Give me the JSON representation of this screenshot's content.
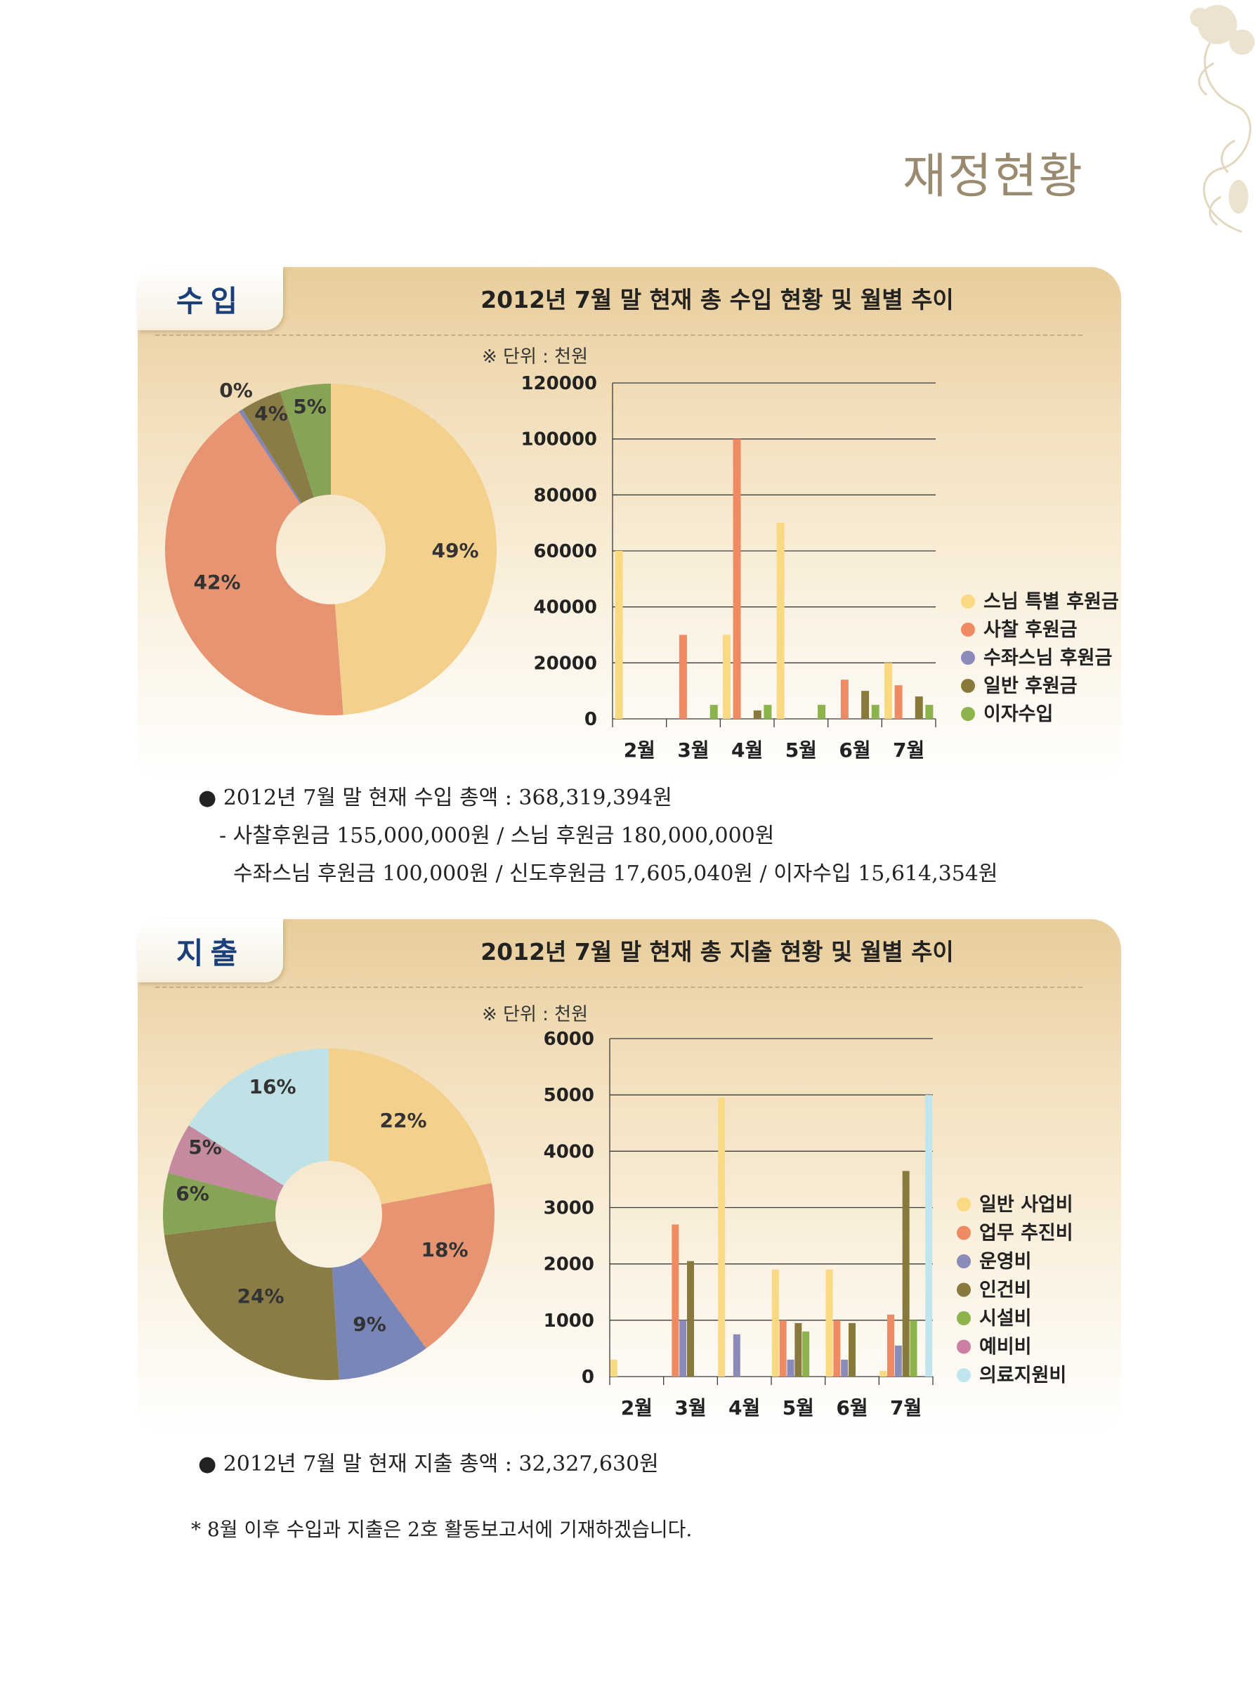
{
  "page": {
    "title": "재정현황"
  },
  "income": {
    "tab_label": "수입",
    "heading": "2012년 7월 말 현재 총 수입 현황 및 월별 추이",
    "notes": [
      "● 2012년 7월 말 현재 수입 총액 : 368,319,394원",
      "- 사찰후원금 155,000,000원  / 스님 후원금 180,000,000원",
      "수좌스님 후원금 100,000원 / 신도후원금 17,605,040원 / 이자수입 15,614,354원"
    ]
  },
  "expense": {
    "tab_label": "지출",
    "heading": "2012년 7월 말 현재 총 지출 현황 및 월별 추이",
    "notes": [
      "● 2012년 7월 말 현재 지출 총액 : 32,327,630원"
    ]
  },
  "footnote": "* 8월 이후 수입과 지출은 2호 활동보고서에 기재하겠습니다.",
  "chart_data": [
    {
      "type": "pie",
      "id": "income-pie",
      "slices": [
        {
          "label": "49%",
          "value": 49,
          "color": "#f4d08d"
        },
        {
          "label": "42%",
          "value": 42,
          "color": "#e69472"
        },
        {
          "label": "0%",
          "value": 0.4,
          "color": "#8486b6"
        },
        {
          "label": "4%",
          "value": 4,
          "color": "#8a7c47"
        },
        {
          "label": "5%",
          "value": 5,
          "color": "#86a356"
        }
      ]
    },
    {
      "type": "bar",
      "id": "income-bar",
      "unit_note": "※ 단위 : 천원",
      "categories": [
        "2월",
        "3월",
        "4월",
        "5월",
        "6월",
        "7월"
      ],
      "ylim": [
        0,
        120000
      ],
      "yticks": [
        "0",
        "20000",
        "40000",
        "60000",
        "80000",
        "100000",
        "120000"
      ],
      "grid": true,
      "legend_position": "right",
      "series": [
        {
          "name": "스님 특별 후원금",
          "color": "#fad983",
          "values": [
            60000,
            0,
            30000,
            70000,
            0,
            20000
          ]
        },
        {
          "name": "사찰 후원금",
          "color": "#ef8b62",
          "values": [
            0,
            30000,
            100000,
            0,
            14000,
            12000
          ]
        },
        {
          "name": "수좌스님 후원금",
          "color": "#8a8bb8",
          "values": [
            0,
            0,
            0,
            0,
            0,
            0
          ]
        },
        {
          "name": "일반 후원금",
          "color": "#877a3c",
          "values": [
            0,
            0,
            3000,
            0,
            10000,
            8000
          ]
        },
        {
          "name": "이자수입",
          "color": "#8cb34c",
          "values": [
            0,
            5000,
            5000,
            5000,
            5000,
            5000
          ]
        }
      ]
    },
    {
      "type": "pie",
      "id": "expense-pie",
      "slices": [
        {
          "label": "22%",
          "value": 22,
          "color": "#f4d08d"
        },
        {
          "label": "18%",
          "value": 18,
          "color": "#e69472"
        },
        {
          "label": "9%",
          "value": 9,
          "color": "#7b86b8"
        },
        {
          "label": "24%",
          "value": 24,
          "color": "#8a7c47"
        },
        {
          "label": "6%",
          "value": 6,
          "color": "#86a356"
        },
        {
          "label": "5%",
          "value": 5,
          "color": "#c48aa0"
        },
        {
          "label": "16%",
          "value": 16,
          "color": "#bfe2e6"
        }
      ]
    },
    {
      "type": "bar",
      "id": "expense-bar",
      "unit_note": "※ 단위 : 천원",
      "categories": [
        "2월",
        "3월",
        "4월",
        "5월",
        "6월",
        "7월"
      ],
      "ylim": [
        0,
        6000
      ],
      "yticks": [
        "0",
        "1000",
        "2000",
        "3000",
        "4000",
        "5000",
        "6000"
      ],
      "grid": true,
      "legend_position": "right",
      "series": [
        {
          "name": "일반 사업비",
          "color": "#fad983",
          "values": [
            300,
            0,
            4950,
            1900,
            1900,
            100
          ]
        },
        {
          "name": "업무 추진비",
          "color": "#ef8b62",
          "values": [
            0,
            2700,
            0,
            1000,
            1000,
            1100
          ]
        },
        {
          "name": "운영비",
          "color": "#8a8bb8",
          "values": [
            0,
            1000,
            750,
            300,
            300,
            550
          ]
        },
        {
          "name": "인건비",
          "color": "#877a3c",
          "values": [
            0,
            2050,
            0,
            950,
            950,
            3650
          ]
        },
        {
          "name": "시설비",
          "color": "#8cb34c",
          "values": [
            0,
            0,
            0,
            800,
            0,
            1000
          ]
        },
        {
          "name": "예비비",
          "color": "#cc7fa3",
          "values": [
            0,
            0,
            0,
            0,
            0,
            0
          ]
        },
        {
          "name": "의료지원비",
          "color": "#bfe6ee",
          "values": [
            0,
            0,
            0,
            0,
            0,
            5000
          ]
        }
      ]
    }
  ]
}
